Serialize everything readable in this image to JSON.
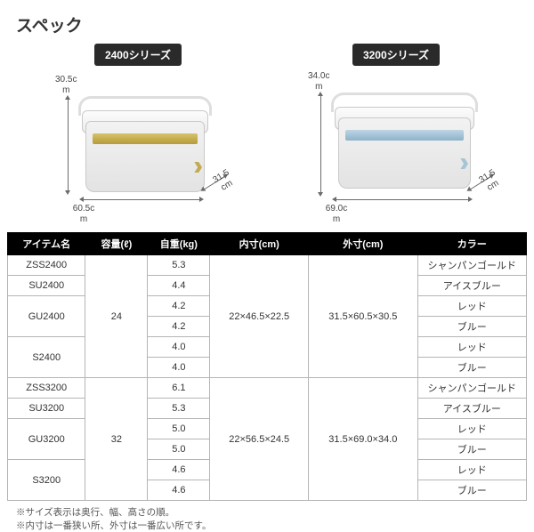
{
  "title": "スペック",
  "products": [
    {
      "series_label": "2400シリーズ",
      "color_class": "c-gold",
      "dims": {
        "height": "30.5c\nm",
        "width": "60.5c\nm",
        "depth": "31.5\ncm"
      }
    },
    {
      "series_label": "3200シリーズ",
      "color_class": "c-blue",
      "dims": {
        "height": "34.0c\nm",
        "width": "69.0c\nm",
        "depth": "31.5\ncm"
      }
    }
  ],
  "table": {
    "headers": [
      "アイテム名",
      "容量(ℓ)",
      "自重(kg)",
      "内寸(cm)",
      "外寸(cm)",
      "カラー"
    ],
    "rows": [
      {
        "item": "ZSS2400",
        "cap": "24",
        "cap_span": 6,
        "wt": "5.3",
        "inn": "22×46.5×22.5",
        "inn_span": 6,
        "out": "31.5×60.5×30.5",
        "out_span": 6,
        "color": "シャンパンゴールド"
      },
      {
        "item": "SU2400",
        "wt": "4.4",
        "color": "アイスブルー"
      },
      {
        "item": "GU2400",
        "item_span": 2,
        "wt": "4.2",
        "color": "レッド"
      },
      {
        "wt": "4.2",
        "color": "ブルー"
      },
      {
        "item": "S2400",
        "item_span": 2,
        "wt": "4.0",
        "color": "レッド"
      },
      {
        "wt": "4.0",
        "color": "ブルー"
      },
      {
        "item": "ZSS3200",
        "cap": "32",
        "cap_span": 6,
        "wt": "6.1",
        "inn": "22×56.5×24.5",
        "inn_span": 6,
        "out": "31.5×69.0×34.0",
        "out_span": 6,
        "color": "シャンパンゴールド"
      },
      {
        "item": "SU3200",
        "wt": "5.3",
        "color": "アイスブルー"
      },
      {
        "item": "GU3200",
        "item_span": 2,
        "wt": "5.0",
        "color": "レッド"
      },
      {
        "wt": "5.0",
        "color": "ブルー"
      },
      {
        "item": "S3200",
        "item_span": 2,
        "wt": "4.6",
        "color": "レッド"
      },
      {
        "wt": "4.6",
        "color": "ブルー"
      }
    ]
  },
  "notes": [
    "※サイズ表示は奥行、幅、高さの順。",
    "※内寸は一番狭い所、外寸は一番広い所です。"
  ]
}
